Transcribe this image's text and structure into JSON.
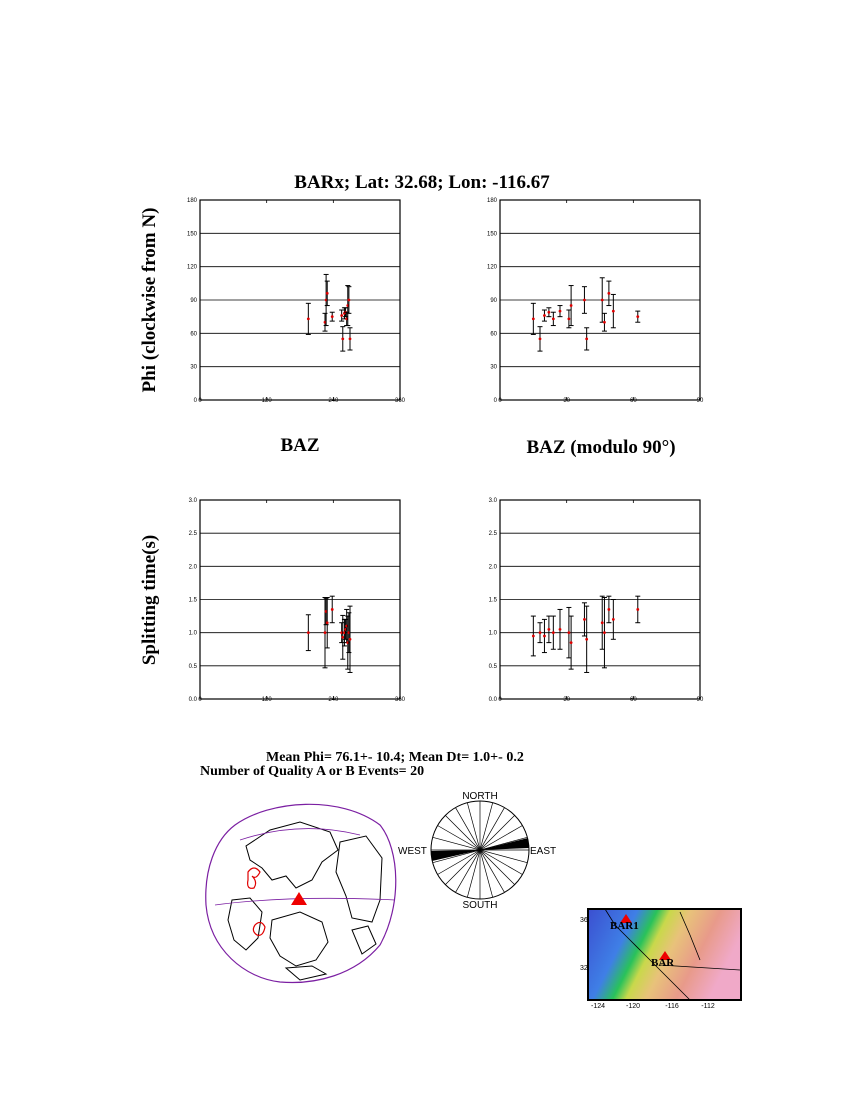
{
  "header": {
    "title": "BARx; Lat:  32.68;  Lon: -116.67"
  },
  "labels": {
    "ylabel_top": "Phi (clockwise from N)",
    "ylabel_bottom": "Splitting time(s)",
    "xlabel_left": "BAZ",
    "xlabel_right": "BAZ (modulo 90°)"
  },
  "summary": {
    "mean_line": "Mean Phi= 76.1+- 10.4; Mean Dt=  1.0+-  0.2",
    "count_line": "Number of Quality A  or B Events= 20"
  },
  "rose": {
    "north": "NORTH",
    "south": "SOUTH",
    "west": "WEST",
    "east": "EAST"
  },
  "map": {
    "station_1": "BAR1",
    "station_2": "BAR",
    "lat_ticks": [
      "36",
      "32"
    ],
    "lon_ticks": [
      "-124",
      "-120",
      "-116",
      "-112"
    ]
  },
  "colors": {
    "data_point": "#dd0000",
    "errorbar": "#000000",
    "globe_outline": "#7b1fa2",
    "station_marker": "#ee0000"
  },
  "chart_data": [
    {
      "id": "phi_vs_baz",
      "type": "scatter",
      "xlim": [
        0,
        360
      ],
      "ylim": [
        0,
        180
      ],
      "xticks": [
        0,
        120,
        240,
        360
      ],
      "yticks": [
        0,
        30,
        60,
        90,
        120,
        150,
        180
      ],
      "grid": "horizontal",
      "points": [
        {
          "x": 195,
          "y": 73,
          "err": 14
        },
        {
          "x": 225,
          "y": 70,
          "err": 8
        },
        {
          "x": 227,
          "y": 90,
          "err": 23
        },
        {
          "x": 229,
          "y": 96,
          "err": 11
        },
        {
          "x": 238,
          "y": 75,
          "err": 4
        },
        {
          "x": 255,
          "y": 76,
          "err": 5
        },
        {
          "x": 257,
          "y": 55,
          "err": 11
        },
        {
          "x": 260,
          "y": 78,
          "err": 5
        },
        {
          "x": 262,
          "y": 79,
          "err": 4
        },
        {
          "x": 264,
          "y": 73,
          "err": 6
        },
        {
          "x": 266,
          "y": 85,
          "err": 18
        },
        {
          "x": 268,
          "y": 90,
          "err": 12
        },
        {
          "x": 270,
          "y": 55,
          "err": 10
        }
      ]
    },
    {
      "id": "phi_vs_baz_mod90",
      "type": "scatter",
      "xlim": [
        0,
        90
      ],
      "ylim": [
        0,
        180
      ],
      "xticks": [
        0,
        30,
        60,
        90
      ],
      "yticks": [
        0,
        30,
        60,
        90,
        120,
        150,
        180
      ],
      "grid": "horizontal",
      "points": [
        {
          "x": 15,
          "y": 73,
          "err": 14
        },
        {
          "x": 18,
          "y": 55,
          "err": 11
        },
        {
          "x": 20,
          "y": 76,
          "err": 5
        },
        {
          "x": 22,
          "y": 79,
          "err": 4
        },
        {
          "x": 24,
          "y": 73,
          "err": 6
        },
        {
          "x": 27,
          "y": 80,
          "err": 5
        },
        {
          "x": 31,
          "y": 73,
          "err": 8
        },
        {
          "x": 32,
          "y": 85,
          "err": 18
        },
        {
          "x": 38,
          "y": 90,
          "err": 12
        },
        {
          "x": 39,
          "y": 55,
          "err": 10
        },
        {
          "x": 46,
          "y": 90,
          "err": 20
        },
        {
          "x": 47,
          "y": 70,
          "err": 8
        },
        {
          "x": 49,
          "y": 96,
          "err": 11
        },
        {
          "x": 51,
          "y": 80,
          "err": 15
        },
        {
          "x": 62,
          "y": 75,
          "err": 5
        }
      ]
    },
    {
      "id": "dt_vs_baz",
      "type": "scatter",
      "xlim": [
        0,
        360
      ],
      "ylim": [
        0,
        3.0
      ],
      "xticks": [
        0,
        120,
        240,
        360
      ],
      "yticks": [
        0,
        0.5,
        1.0,
        1.5,
        2.0,
        2.5,
        3.0
      ],
      "grid": "horizontal",
      "points": [
        {
          "x": 195,
          "y": 1.0,
          "err": 0.27
        },
        {
          "x": 225,
          "y": 1.0,
          "err": 0.53
        },
        {
          "x": 227,
          "y": 1.32,
          "err": 0.2
        },
        {
          "x": 229,
          "y": 1.15,
          "err": 0.38
        },
        {
          "x": 238,
          "y": 1.35,
          "err": 0.2
        },
        {
          "x": 255,
          "y": 1.0,
          "err": 0.15
        },
        {
          "x": 257,
          "y": 0.93,
          "err": 0.33
        },
        {
          "x": 260,
          "y": 1.0,
          "err": 0.2
        },
        {
          "x": 262,
          "y": 1.05,
          "err": 0.15
        },
        {
          "x": 264,
          "y": 1.1,
          "err": 0.25
        },
        {
          "x": 266,
          "y": 0.85,
          "err": 0.4
        },
        {
          "x": 268,
          "y": 1.0,
          "err": 0.3
        },
        {
          "x": 270,
          "y": 0.9,
          "err": 0.5
        }
      ]
    },
    {
      "id": "dt_vs_baz_mod90",
      "type": "scatter",
      "xlim": [
        0,
        90
      ],
      "ylim": [
        0,
        3.0
      ],
      "xticks": [
        0,
        30,
        60,
        90
      ],
      "yticks": [
        0,
        0.5,
        1.0,
        1.5,
        2.0,
        2.5,
        3.0
      ],
      "grid": "horizontal",
      "points": [
        {
          "x": 15,
          "y": 0.95,
          "err": 0.3
        },
        {
          "x": 18,
          "y": 1.0,
          "err": 0.15
        },
        {
          "x": 20,
          "y": 0.95,
          "err": 0.25
        },
        {
          "x": 22,
          "y": 1.05,
          "err": 0.2
        },
        {
          "x": 24,
          "y": 1.0,
          "err": 0.25
        },
        {
          "x": 27,
          "y": 1.05,
          "err": 0.3
        },
        {
          "x": 31,
          "y": 1.0,
          "err": 0.38
        },
        {
          "x": 32,
          "y": 0.85,
          "err": 0.4
        },
        {
          "x": 38,
          "y": 1.2,
          "err": 0.25
        },
        {
          "x": 39,
          "y": 0.9,
          "err": 0.5
        },
        {
          "x": 46,
          "y": 1.15,
          "err": 0.4
        },
        {
          "x": 47,
          "y": 1.0,
          "err": 0.53
        },
        {
          "x": 49,
          "y": 1.35,
          "err": 0.2
        },
        {
          "x": 51,
          "y": 1.2,
          "err": 0.3
        },
        {
          "x": 62,
          "y": 1.35,
          "err": 0.2
        }
      ]
    }
  ]
}
